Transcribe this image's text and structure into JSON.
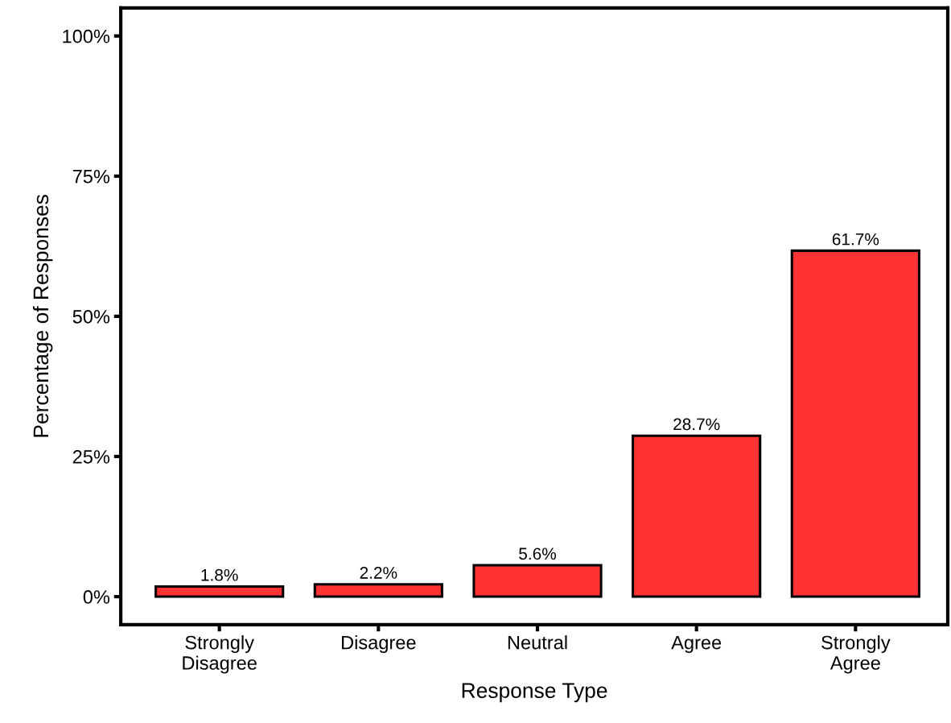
{
  "chart_data": {
    "type": "bar",
    "xlabel": "Response Type",
    "ylabel": "Percentage of Responses",
    "categories": [
      "Strongly\nDisagree",
      "Disagree",
      "Neutral",
      "Agree",
      "Strongly\nAgree"
    ],
    "values": [
      1.8,
      2.2,
      5.6,
      28.7,
      61.7
    ],
    "value_labels": [
      "1.8%",
      "2.2%",
      "5.6%",
      "28.7%",
      "61.7%"
    ],
    "color": "#ff3333",
    "ylim": [
      -5,
      105
    ],
    "yticks": [
      {
        "value": 0,
        "label": "0%"
      },
      {
        "value": 25,
        "label": "25%"
      },
      {
        "value": 50,
        "label": "50%"
      },
      {
        "value": 75,
        "label": "75%"
      },
      {
        "value": 100,
        "label": "100%"
      }
    ],
    "grid": false
  }
}
